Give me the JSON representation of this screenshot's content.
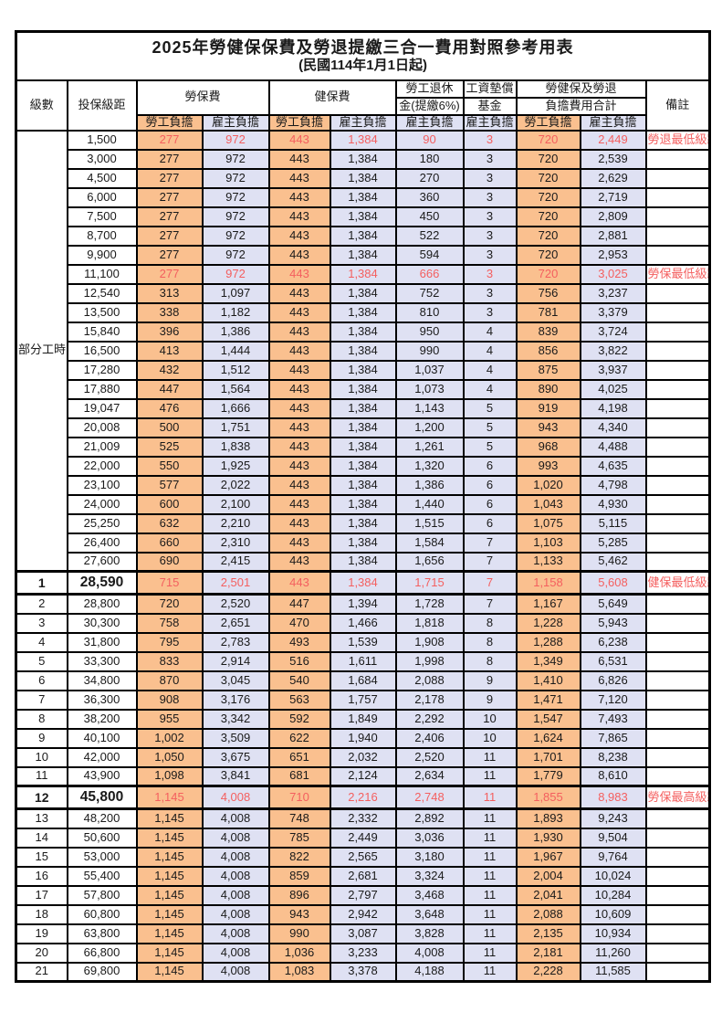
{
  "page": {
    "title": "2025年勞健保保費及勞退提繳三合一費用對照參考用表",
    "subtitle": "(民國114年1月1日起)"
  },
  "colors": {
    "employee_bg": "#fac08f",
    "employer_bg": "#dfe1f3",
    "highlight_text": "#f45f5f",
    "grid": "#000000"
  },
  "table": {
    "headers": {
      "level": "級數",
      "bracket": "投保級距",
      "labor_insurance": "勞保費",
      "health_insurance": "健保費",
      "pension_line1": "勞工退休",
      "pension_line2": "金(提繳6%)",
      "wage_fund_line1": "工資墊償",
      "wage_fund_line2": "基金",
      "total_line1": "勞健保及勞退",
      "total_line2": "負擔費用合計",
      "remark": "備註",
      "employee_share": "勞工負擔",
      "employer_share": "雇主負擔"
    },
    "part_time_label": "部分工時",
    "part_time_rowspan": 23,
    "rows": [
      {
        "level": "",
        "bracket": "1,500",
        "li_e": "277",
        "li_r": "972",
        "hi_e": "443",
        "hi_r": "1,384",
        "pen": "90",
        "fund": "3",
        "tot_e": "720",
        "tot_r": "2,449",
        "remark": "勞退最低級距",
        "red": true,
        "bold": false,
        "section": false
      },
      {
        "level": "",
        "bracket": "3,000",
        "li_e": "277",
        "li_r": "972",
        "hi_e": "443",
        "hi_r": "1,384",
        "pen": "180",
        "fund": "3",
        "tot_e": "720",
        "tot_r": "2,539",
        "remark": "",
        "red": false,
        "bold": false,
        "section": false
      },
      {
        "level": "",
        "bracket": "4,500",
        "li_e": "277",
        "li_r": "972",
        "hi_e": "443",
        "hi_r": "1,384",
        "pen": "270",
        "fund": "3",
        "tot_e": "720",
        "tot_r": "2,629",
        "remark": "",
        "red": false,
        "bold": false,
        "section": false
      },
      {
        "level": "",
        "bracket": "6,000",
        "li_e": "277",
        "li_r": "972",
        "hi_e": "443",
        "hi_r": "1,384",
        "pen": "360",
        "fund": "3",
        "tot_e": "720",
        "tot_r": "2,719",
        "remark": "",
        "red": false,
        "bold": false,
        "section": false
      },
      {
        "level": "",
        "bracket": "7,500",
        "li_e": "277",
        "li_r": "972",
        "hi_e": "443",
        "hi_r": "1,384",
        "pen": "450",
        "fund": "3",
        "tot_e": "720",
        "tot_r": "2,809",
        "remark": "",
        "red": false,
        "bold": false,
        "section": false
      },
      {
        "level": "",
        "bracket": "8,700",
        "li_e": "277",
        "li_r": "972",
        "hi_e": "443",
        "hi_r": "1,384",
        "pen": "522",
        "fund": "3",
        "tot_e": "720",
        "tot_r": "2,881",
        "remark": "",
        "red": false,
        "bold": false,
        "section": false
      },
      {
        "level": "",
        "bracket": "9,900",
        "li_e": "277",
        "li_r": "972",
        "hi_e": "443",
        "hi_r": "1,384",
        "pen": "594",
        "fund": "3",
        "tot_e": "720",
        "tot_r": "2,953",
        "remark": "",
        "red": false,
        "bold": false,
        "section": false
      },
      {
        "level": "",
        "bracket": "11,100",
        "li_e": "277",
        "li_r": "972",
        "hi_e": "443",
        "hi_r": "1,384",
        "pen": "666",
        "fund": "3",
        "tot_e": "720",
        "tot_r": "3,025",
        "remark": "勞保最低級距",
        "red": true,
        "bold": false,
        "section": false
      },
      {
        "level": "",
        "bracket": "12,540",
        "li_e": "313",
        "li_r": "1,097",
        "hi_e": "443",
        "hi_r": "1,384",
        "pen": "752",
        "fund": "3",
        "tot_e": "756",
        "tot_r": "3,237",
        "remark": "",
        "red": false,
        "bold": false,
        "section": false
      },
      {
        "level": "",
        "bracket": "13,500",
        "li_e": "338",
        "li_r": "1,182",
        "hi_e": "443",
        "hi_r": "1,384",
        "pen": "810",
        "fund": "3",
        "tot_e": "781",
        "tot_r": "3,379",
        "remark": "",
        "red": false,
        "bold": false,
        "section": false
      },
      {
        "level": "",
        "bracket": "15,840",
        "li_e": "396",
        "li_r": "1,386",
        "hi_e": "443",
        "hi_r": "1,384",
        "pen": "950",
        "fund": "4",
        "tot_e": "839",
        "tot_r": "3,724",
        "remark": "",
        "red": false,
        "bold": false,
        "section": false
      },
      {
        "level": "",
        "bracket": "16,500",
        "li_e": "413",
        "li_r": "1,444",
        "hi_e": "443",
        "hi_r": "1,384",
        "pen": "990",
        "fund": "4",
        "tot_e": "856",
        "tot_r": "3,822",
        "remark": "",
        "red": false,
        "bold": false,
        "section": false
      },
      {
        "level": "",
        "bracket": "17,280",
        "li_e": "432",
        "li_r": "1,512",
        "hi_e": "443",
        "hi_r": "1,384",
        "pen": "1,037",
        "fund": "4",
        "tot_e": "875",
        "tot_r": "3,937",
        "remark": "",
        "red": false,
        "bold": false,
        "section": false
      },
      {
        "level": "",
        "bracket": "17,880",
        "li_e": "447",
        "li_r": "1,564",
        "hi_e": "443",
        "hi_r": "1,384",
        "pen": "1,073",
        "fund": "4",
        "tot_e": "890",
        "tot_r": "4,025",
        "remark": "",
        "red": false,
        "bold": false,
        "section": false
      },
      {
        "level": "",
        "bracket": "19,047",
        "li_e": "476",
        "li_r": "1,666",
        "hi_e": "443",
        "hi_r": "1,384",
        "pen": "1,143",
        "fund": "5",
        "tot_e": "919",
        "tot_r": "4,198",
        "remark": "",
        "red": false,
        "bold": false,
        "section": false
      },
      {
        "level": "",
        "bracket": "20,008",
        "li_e": "500",
        "li_r": "1,751",
        "hi_e": "443",
        "hi_r": "1,384",
        "pen": "1,200",
        "fund": "5",
        "tot_e": "943",
        "tot_r": "4,340",
        "remark": "",
        "red": false,
        "bold": false,
        "section": false
      },
      {
        "level": "",
        "bracket": "21,009",
        "li_e": "525",
        "li_r": "1,838",
        "hi_e": "443",
        "hi_r": "1,384",
        "pen": "1,261",
        "fund": "5",
        "tot_e": "968",
        "tot_r": "4,488",
        "remark": "",
        "red": false,
        "bold": false,
        "section": false
      },
      {
        "level": "",
        "bracket": "22,000",
        "li_e": "550",
        "li_r": "1,925",
        "hi_e": "443",
        "hi_r": "1,384",
        "pen": "1,320",
        "fund": "6",
        "tot_e": "993",
        "tot_r": "4,635",
        "remark": "",
        "red": false,
        "bold": false,
        "section": false
      },
      {
        "level": "",
        "bracket": "23,100",
        "li_e": "577",
        "li_r": "2,022",
        "hi_e": "443",
        "hi_r": "1,384",
        "pen": "1,386",
        "fund": "6",
        "tot_e": "1,020",
        "tot_r": "4,798",
        "remark": "",
        "red": false,
        "bold": false,
        "section": false
      },
      {
        "level": "",
        "bracket": "24,000",
        "li_e": "600",
        "li_r": "2,100",
        "hi_e": "443",
        "hi_r": "1,384",
        "pen": "1,440",
        "fund": "6",
        "tot_e": "1,043",
        "tot_r": "4,930",
        "remark": "",
        "red": false,
        "bold": false,
        "section": false
      },
      {
        "level": "",
        "bracket": "25,250",
        "li_e": "632",
        "li_r": "2,210",
        "hi_e": "443",
        "hi_r": "1,384",
        "pen": "1,515",
        "fund": "6",
        "tot_e": "1,075",
        "tot_r": "5,115",
        "remark": "",
        "red": false,
        "bold": false,
        "section": false
      },
      {
        "level": "",
        "bracket": "26,400",
        "li_e": "660",
        "li_r": "2,310",
        "hi_e": "443",
        "hi_r": "1,384",
        "pen": "1,584",
        "fund": "7",
        "tot_e": "1,103",
        "tot_r": "5,285",
        "remark": "",
        "red": false,
        "bold": false,
        "section": false
      },
      {
        "level": "",
        "bracket": "27,600",
        "li_e": "690",
        "li_r": "2,415",
        "hi_e": "443",
        "hi_r": "1,384",
        "pen": "1,656",
        "fund": "7",
        "tot_e": "1,133",
        "tot_r": "5,462",
        "remark": "",
        "red": false,
        "bold": false,
        "section": false
      },
      {
        "level": "1",
        "bracket": "28,590",
        "li_e": "715",
        "li_r": "2,501",
        "hi_e": "443",
        "hi_r": "1,384",
        "pen": "1,715",
        "fund": "7",
        "tot_e": "1,158",
        "tot_r": "5,608",
        "remark": "健保最低級距",
        "red": true,
        "bold": true,
        "section": true
      },
      {
        "level": "2",
        "bracket": "28,800",
        "li_e": "720",
        "li_r": "2,520",
        "hi_e": "447",
        "hi_r": "1,394",
        "pen": "1,728",
        "fund": "7",
        "tot_e": "1,167",
        "tot_r": "5,649",
        "remark": "",
        "red": false,
        "bold": false,
        "section": false
      },
      {
        "level": "3",
        "bracket": "30,300",
        "li_e": "758",
        "li_r": "2,651",
        "hi_e": "470",
        "hi_r": "1,466",
        "pen": "1,818",
        "fund": "8",
        "tot_e": "1,228",
        "tot_r": "5,943",
        "remark": "",
        "red": false,
        "bold": false,
        "section": false
      },
      {
        "level": "4",
        "bracket": "31,800",
        "li_e": "795",
        "li_r": "2,783",
        "hi_e": "493",
        "hi_r": "1,539",
        "pen": "1,908",
        "fund": "8",
        "tot_e": "1,288",
        "tot_r": "6,238",
        "remark": "",
        "red": false,
        "bold": false,
        "section": false
      },
      {
        "level": "5",
        "bracket": "33,300",
        "li_e": "833",
        "li_r": "2,914",
        "hi_e": "516",
        "hi_r": "1,611",
        "pen": "1,998",
        "fund": "8",
        "tot_e": "1,349",
        "tot_r": "6,531",
        "remark": "",
        "red": false,
        "bold": false,
        "section": false
      },
      {
        "level": "6",
        "bracket": "34,800",
        "li_e": "870",
        "li_r": "3,045",
        "hi_e": "540",
        "hi_r": "1,684",
        "pen": "2,088",
        "fund": "9",
        "tot_e": "1,410",
        "tot_r": "6,826",
        "remark": "",
        "red": false,
        "bold": false,
        "section": false
      },
      {
        "level": "7",
        "bracket": "36,300",
        "li_e": "908",
        "li_r": "3,176",
        "hi_e": "563",
        "hi_r": "1,757",
        "pen": "2,178",
        "fund": "9",
        "tot_e": "1,471",
        "tot_r": "7,120",
        "remark": "",
        "red": false,
        "bold": false,
        "section": false
      },
      {
        "level": "8",
        "bracket": "38,200",
        "li_e": "955",
        "li_r": "3,342",
        "hi_e": "592",
        "hi_r": "1,849",
        "pen": "2,292",
        "fund": "10",
        "tot_e": "1,547",
        "tot_r": "7,493",
        "remark": "",
        "red": false,
        "bold": false,
        "section": false
      },
      {
        "level": "9",
        "bracket": "40,100",
        "li_e": "1,002",
        "li_r": "3,509",
        "hi_e": "622",
        "hi_r": "1,940",
        "pen": "2,406",
        "fund": "10",
        "tot_e": "1,624",
        "tot_r": "7,865",
        "remark": "",
        "red": false,
        "bold": false,
        "section": false
      },
      {
        "level": "10",
        "bracket": "42,000",
        "li_e": "1,050",
        "li_r": "3,675",
        "hi_e": "651",
        "hi_r": "2,032",
        "pen": "2,520",
        "fund": "11",
        "tot_e": "1,701",
        "tot_r": "8,238",
        "remark": "",
        "red": false,
        "bold": false,
        "section": false
      },
      {
        "level": "11",
        "bracket": "43,900",
        "li_e": "1,098",
        "li_r": "3,841",
        "hi_e": "681",
        "hi_r": "2,124",
        "pen": "2,634",
        "fund": "11",
        "tot_e": "1,779",
        "tot_r": "8,610",
        "remark": "",
        "red": false,
        "bold": false,
        "section": false
      },
      {
        "level": "12",
        "bracket": "45,800",
        "li_e": "1,145",
        "li_r": "4,008",
        "hi_e": "710",
        "hi_r": "2,216",
        "pen": "2,748",
        "fund": "11",
        "tot_e": "1,855",
        "tot_r": "8,983",
        "remark": "勞保最高級距",
        "red": true,
        "bold": true,
        "section": true
      },
      {
        "level": "13",
        "bracket": "48,200",
        "li_e": "1,145",
        "li_r": "4,008",
        "hi_e": "748",
        "hi_r": "2,332",
        "pen": "2,892",
        "fund": "11",
        "tot_e": "1,893",
        "tot_r": "9,243",
        "remark": "",
        "red": false,
        "bold": false,
        "section": false
      },
      {
        "level": "14",
        "bracket": "50,600",
        "li_e": "1,145",
        "li_r": "4,008",
        "hi_e": "785",
        "hi_r": "2,449",
        "pen": "3,036",
        "fund": "11",
        "tot_e": "1,930",
        "tot_r": "9,504",
        "remark": "",
        "red": false,
        "bold": false,
        "section": false
      },
      {
        "level": "15",
        "bracket": "53,000",
        "li_e": "1,145",
        "li_r": "4,008",
        "hi_e": "822",
        "hi_r": "2,565",
        "pen": "3,180",
        "fund": "11",
        "tot_e": "1,967",
        "tot_r": "9,764",
        "remark": "",
        "red": false,
        "bold": false,
        "section": false
      },
      {
        "level": "16",
        "bracket": "55,400",
        "li_e": "1,145",
        "li_r": "4,008",
        "hi_e": "859",
        "hi_r": "2,681",
        "pen": "3,324",
        "fund": "11",
        "tot_e": "2,004",
        "tot_r": "10,024",
        "remark": "",
        "red": false,
        "bold": false,
        "section": false
      },
      {
        "level": "17",
        "bracket": "57,800",
        "li_e": "1,145",
        "li_r": "4,008",
        "hi_e": "896",
        "hi_r": "2,797",
        "pen": "3,468",
        "fund": "11",
        "tot_e": "2,041",
        "tot_r": "10,284",
        "remark": "",
        "red": false,
        "bold": false,
        "section": false
      },
      {
        "level": "18",
        "bracket": "60,800",
        "li_e": "1,145",
        "li_r": "4,008",
        "hi_e": "943",
        "hi_r": "2,942",
        "pen": "3,648",
        "fund": "11",
        "tot_e": "2,088",
        "tot_r": "10,609",
        "remark": "",
        "red": false,
        "bold": false,
        "section": false
      },
      {
        "level": "19",
        "bracket": "63,800",
        "li_e": "1,145",
        "li_r": "4,008",
        "hi_e": "990",
        "hi_r": "3,087",
        "pen": "3,828",
        "fund": "11",
        "tot_e": "2,135",
        "tot_r": "10,934",
        "remark": "",
        "red": false,
        "bold": false,
        "section": false
      },
      {
        "level": "20",
        "bracket": "66,800",
        "li_e": "1,145",
        "li_r": "4,008",
        "hi_e": "1,036",
        "hi_r": "3,233",
        "pen": "4,008",
        "fund": "11",
        "tot_e": "2,181",
        "tot_r": "11,260",
        "remark": "",
        "red": false,
        "bold": false,
        "section": false
      },
      {
        "level": "21",
        "bracket": "69,800",
        "li_e": "1,145",
        "li_r": "4,008",
        "hi_e": "1,083",
        "hi_r": "3,378",
        "pen": "4,188",
        "fund": "11",
        "tot_e": "2,228",
        "tot_r": "11,585",
        "remark": "",
        "red": false,
        "bold": false,
        "section": false
      }
    ]
  }
}
